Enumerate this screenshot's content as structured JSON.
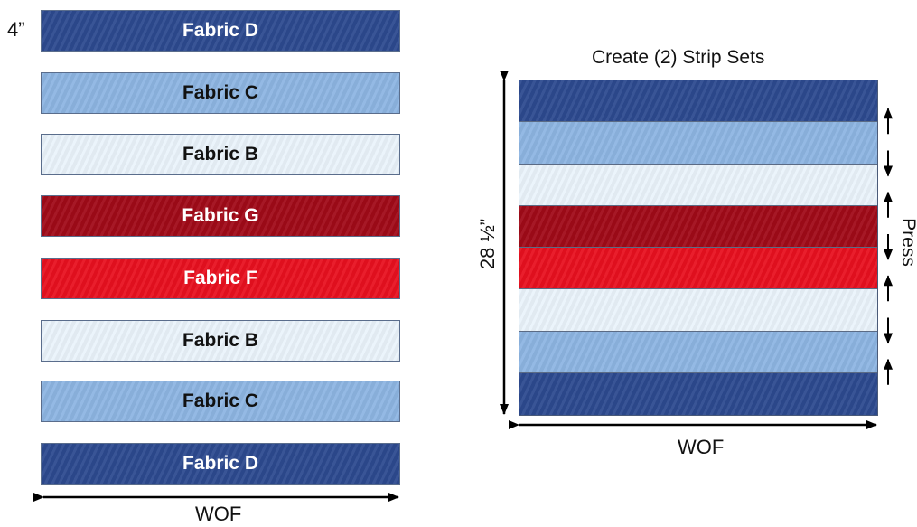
{
  "strip_width_label": "4”",
  "strips": [
    {
      "label": "Fabric D",
      "fabric": "D"
    },
    {
      "label": "Fabric C",
      "fabric": "C"
    },
    {
      "label": "Fabric B",
      "fabric": "B"
    },
    {
      "label": "Fabric G",
      "fabric": "G"
    },
    {
      "label": "Fabric F",
      "fabric": "F"
    },
    {
      "label": "Fabric B",
      "fabric": "B"
    },
    {
      "label": "Fabric C",
      "fabric": "C"
    },
    {
      "label": "Fabric D",
      "fabric": "D"
    }
  ],
  "left_width_label": "WOF",
  "strip_set": {
    "title": "Create (2) Strip Sets",
    "height_label": "28 ½”",
    "width_label": "WOF",
    "press_label": "Press",
    "bands": [
      "D",
      "C",
      "B",
      "G",
      "F",
      "B",
      "C",
      "D"
    ],
    "press_directions": [
      "up",
      "down",
      "up",
      "down",
      "up",
      "down",
      "up"
    ]
  },
  "colors": {
    "fabric_D": "#2d4a8f",
    "fabric_C": "#8db5e2",
    "fabric_B": "#eaf3fb",
    "fabric_G": "#a00a18",
    "fabric_F": "#e8101f"
  }
}
